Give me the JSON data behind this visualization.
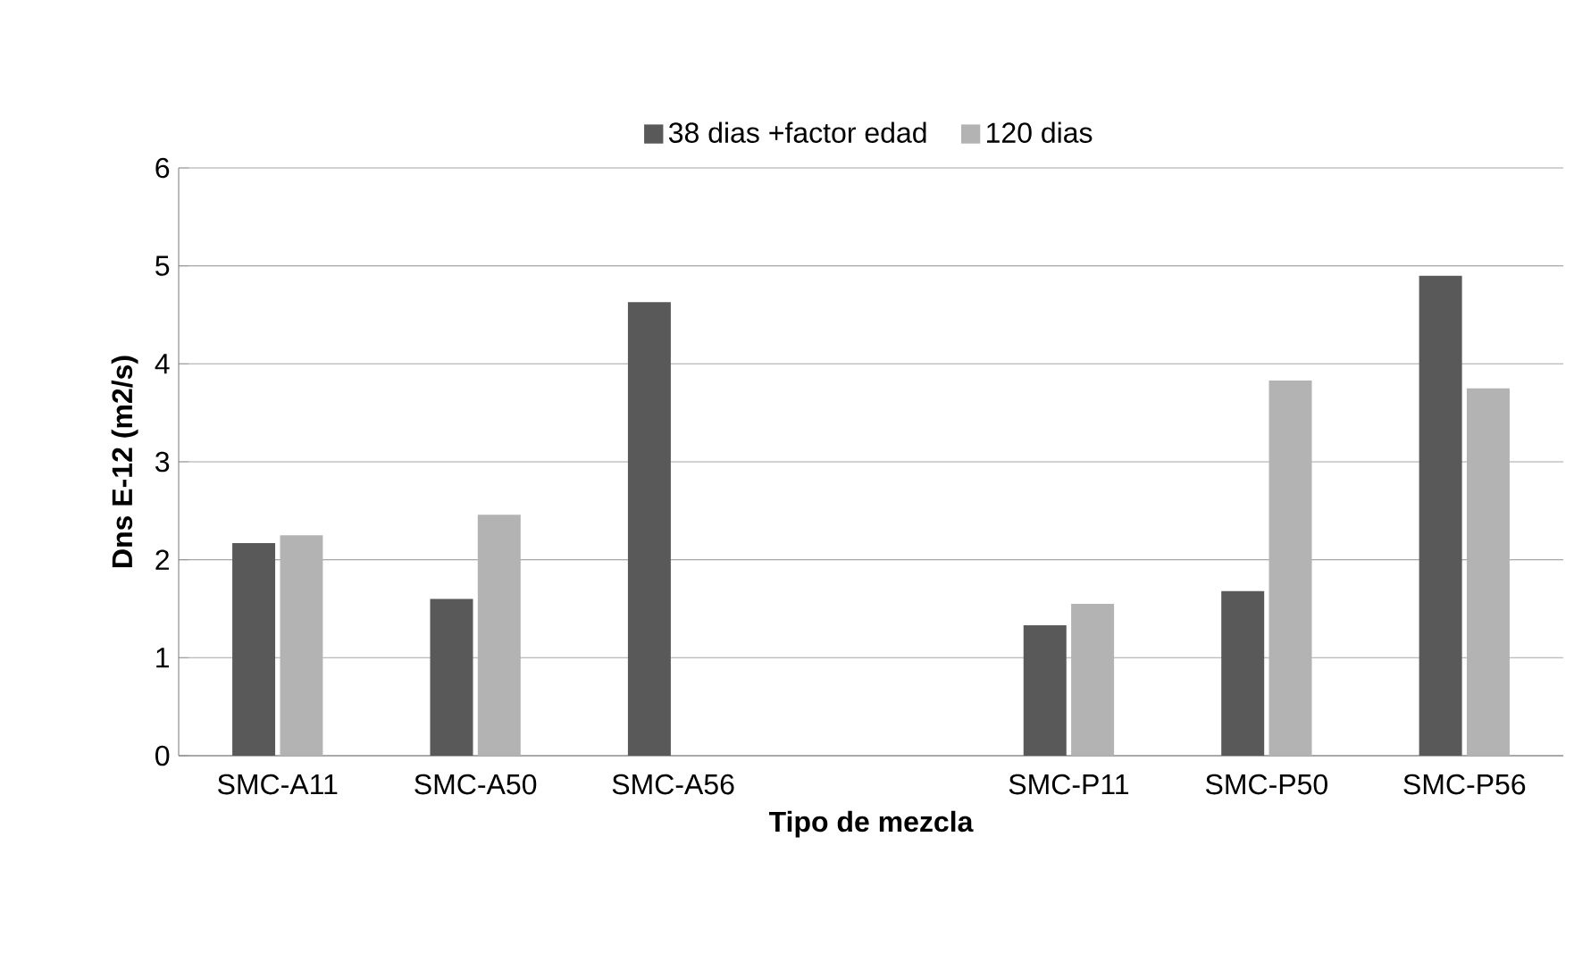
{
  "chart_data": {
    "type": "bar",
    "xlabel": "Tipo de mezcla",
    "ylabel": "Dns E-12 (m2/s)",
    "categories": [
      "SMC-A11",
      "SMC-A50",
      "SMC-A56",
      null,
      "SMC-P11",
      "SMC-P50",
      "SMC-P56"
    ],
    "series": [
      {
        "name": "38 dias +factor edad",
        "color": "#595959",
        "values": [
          2.17,
          1.6,
          4.63,
          null,
          1.33,
          1.68,
          4.9
        ]
      },
      {
        "name": "120 dias",
        "color": "#b3b3b3",
        "values": [
          2.25,
          2.46,
          null,
          null,
          1.55,
          3.83,
          3.75
        ]
      }
    ],
    "ylim": [
      0,
      6
    ],
    "yticks": [
      0,
      1,
      2,
      3,
      4,
      5,
      6
    ],
    "grid": "y",
    "legend": "top"
  }
}
